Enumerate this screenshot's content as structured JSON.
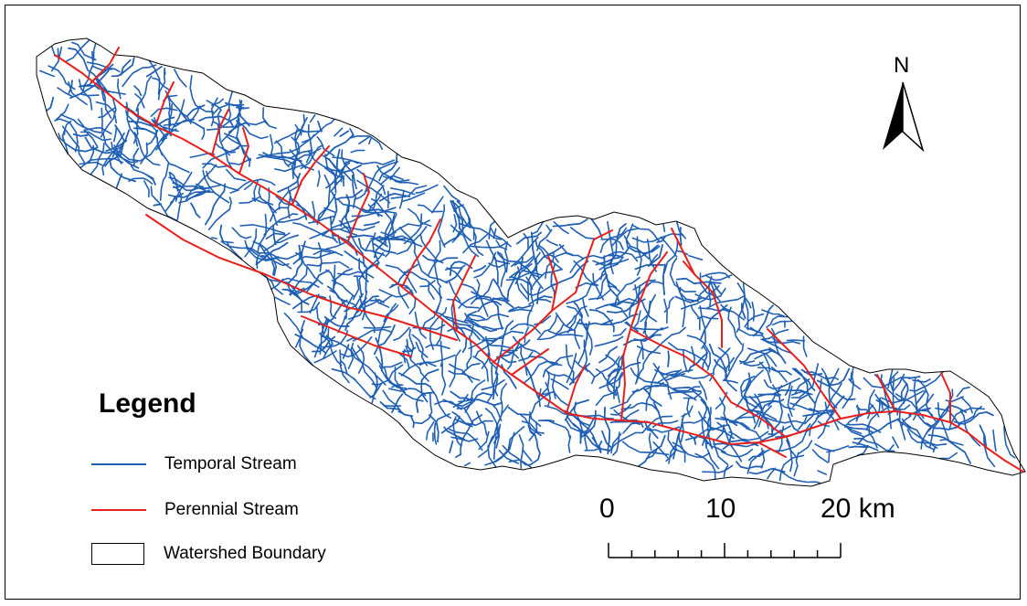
{
  "legend": {
    "title": "Legend",
    "items": [
      {
        "label": "Temporal Stream",
        "color": "#1f5fb4",
        "kind": "line"
      },
      {
        "label": "Perennial Stream",
        "color": "#e8201c",
        "kind": "line"
      },
      {
        "label": "Watershed Boundary",
        "color": "#000000",
        "kind": "box"
      }
    ]
  },
  "scale_bar": {
    "labels": [
      "0",
      "10",
      "20 km"
    ]
  },
  "north_arrow": {
    "label": "N",
    "icon": "north-arrow-icon"
  },
  "colors": {
    "temporal": "#1f5fb4",
    "perennial": "#e8201c",
    "boundary": "#000000",
    "background": "#ffffff"
  }
}
